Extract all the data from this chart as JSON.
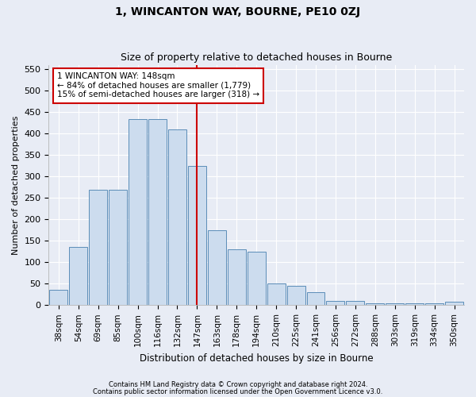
{
  "title": "1, WINCANTON WAY, BOURNE, PE10 0ZJ",
  "subtitle": "Size of property relative to detached houses in Bourne",
  "xlabel": "Distribution of detached houses by size in Bourne",
  "ylabel": "Number of detached properties",
  "footnote1": "Contains HM Land Registry data © Crown copyright and database right 2024.",
  "footnote2": "Contains public sector information licensed under the Open Government Licence v3.0.",
  "categories": [
    "38sqm",
    "54sqm",
    "69sqm",
    "85sqm",
    "100sqm",
    "116sqm",
    "132sqm",
    "147sqm",
    "163sqm",
    "178sqm",
    "194sqm",
    "210sqm",
    "225sqm",
    "241sqm",
    "256sqm",
    "272sqm",
    "288sqm",
    "303sqm",
    "319sqm",
    "334sqm",
    "350sqm"
  ],
  "values": [
    35,
    135,
    270,
    270,
    435,
    435,
    410,
    325,
    175,
    130,
    125,
    50,
    45,
    30,
    10,
    10,
    5,
    5,
    5,
    5,
    8
  ],
  "bar_color": "#ccdcee",
  "bar_edge_color": "#5b8db8",
  "bg_color": "#e8ecf5",
  "grid_color": "#ffffff",
  "vline_color": "#cc0000",
  "annotation_text": "1 WINCANTON WAY: 148sqm\n← 84% of detached houses are smaller (1,779)\n15% of semi-detached houses are larger (318) →",
  "annotation_box_color": "#ffffff",
  "annotation_box_edge": "#cc0000",
  "ylim": [
    0,
    560
  ],
  "yticks": [
    0,
    50,
    100,
    150,
    200,
    250,
    300,
    350,
    400,
    450,
    500,
    550
  ]
}
